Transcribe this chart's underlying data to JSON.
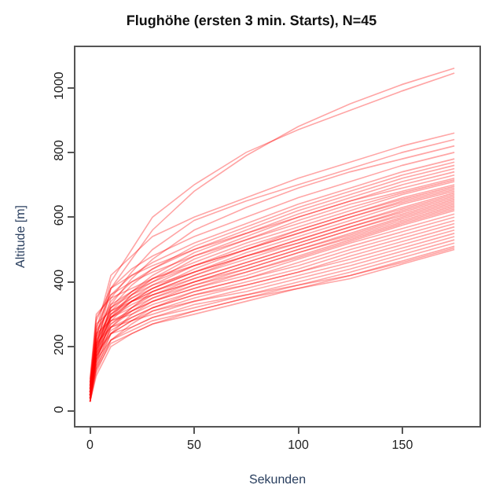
{
  "chart_data": {
    "type": "line",
    "title": "Flughöhe (ersten 3 min. Starts), N=45",
    "xlabel": "Sekunden",
    "ylabel": "Altitude [m]",
    "x": [
      0,
      3,
      10,
      20,
      30,
      50,
      75,
      100,
      125,
      150,
      175
    ],
    "color": "#ff0000",
    "marker": "none",
    "line_style": "solid",
    "xlim": [
      -7,
      187
    ],
    "ylim": [
      -45,
      1125
    ],
    "xticks": [
      0,
      50,
      100,
      150
    ],
    "yticks": [
      0,
      200,
      400,
      600,
      800,
      1000
    ],
    "series": [
      {
        "values": [
          40,
          200,
          380,
          470,
          560,
          680,
          790,
          880,
          950,
          1010,
          1060
        ]
      },
      {
        "values": [
          50,
          230,
          400,
          500,
          600,
          700,
          800,
          870,
          930,
          990,
          1045
        ]
      },
      {
        "values": [
          60,
          250,
          420,
          480,
          540,
          600,
          660,
          720,
          770,
          820,
          860
        ]
      },
      {
        "values": [
          40,
          210,
          350,
          430,
          500,
          590,
          650,
          700,
          750,
          800,
          840
        ]
      },
      {
        "values": [
          30,
          180,
          330,
          410,
          470,
          560,
          630,
          690,
          740,
          780,
          820
        ]
      },
      {
        "values": [
          50,
          230,
          380,
          440,
          480,
          540,
          600,
          660,
          710,
          760,
          800
        ]
      },
      {
        "values": [
          70,
          260,
          360,
          420,
          460,
          520,
          580,
          640,
          690,
          740,
          780
        ]
      },
      {
        "values": [
          40,
          190,
          320,
          390,
          440,
          510,
          570,
          630,
          680,
          730,
          770
        ]
      },
      {
        "values": [
          60,
          220,
          340,
          400,
          440,
          500,
          560,
          620,
          670,
          720,
          760
        ]
      },
      {
        "values": [
          80,
          280,
          380,
          420,
          450,
          500,
          550,
          610,
          660,
          710,
          750
        ]
      },
      {
        "values": [
          30,
          150,
          290,
          360,
          410,
          480,
          540,
          600,
          650,
          700,
          740
        ]
      },
      {
        "values": [
          50,
          200,
          310,
          370,
          420,
          490,
          550,
          600,
          650,
          690,
          730
        ]
      },
      {
        "values": [
          40,
          170,
          300,
          360,
          400,
          470,
          530,
          590,
          640,
          680,
          720
        ]
      },
      {
        "values": [
          90,
          290,
          360,
          400,
          430,
          480,
          530,
          580,
          630,
          675,
          715
        ]
      },
      {
        "values": [
          60,
          210,
          320,
          370,
          410,
          460,
          520,
          570,
          620,
          670,
          710
        ]
      },
      {
        "values": [
          50,
          190,
          300,
          350,
          390,
          450,
          510,
          560,
          610,
          660,
          700
        ]
      },
      {
        "values": [
          70,
          240,
          330,
          370,
          400,
          450,
          500,
          560,
          610,
          655,
          695
        ]
      },
      {
        "values": [
          40,
          160,
          280,
          340,
          380,
          440,
          500,
          550,
          600,
          650,
          690
        ]
      },
      {
        "values": [
          100,
          300,
          350,
          380,
          410,
          450,
          500,
          550,
          600,
          645,
          685
        ]
      },
      {
        "values": [
          50,
          180,
          290,
          340,
          380,
          430,
          490,
          540,
          590,
          640,
          680
        ]
      },
      {
        "values": [
          60,
          210,
          310,
          350,
          380,
          430,
          480,
          530,
          580,
          630,
          675
        ]
      },
      {
        "values": [
          30,
          140,
          260,
          320,
          370,
          420,
          480,
          530,
          580,
          625,
          670
        ]
      },
      {
        "values": [
          80,
          250,
          320,
          360,
          390,
          430,
          480,
          520,
          570,
          620,
          665
        ]
      },
      {
        "values": [
          50,
          190,
          290,
          340,
          370,
          420,
          470,
          520,
          570,
          615,
          660
        ]
      },
      {
        "values": [
          70,
          230,
          300,
          340,
          370,
          410,
          460,
          510,
          560,
          610,
          655
        ]
      },
      {
        "values": [
          40,
          170,
          270,
          320,
          360,
          410,
          460,
          510,
          560,
          605,
          650
        ]
      },
      {
        "values": [
          60,
          200,
          290,
          330,
          360,
          400,
          450,
          500,
          550,
          600,
          645
        ]
      },
      {
        "values": [
          90,
          270,
          310,
          340,
          360,
          400,
          450,
          500,
          545,
          595,
          640
        ]
      },
      {
        "values": [
          50,
          180,
          270,
          310,
          350,
          400,
          440,
          490,
          540,
          590,
          635
        ]
      },
      {
        "values": [
          30,
          130,
          240,
          300,
          340,
          390,
          440,
          490,
          535,
          585,
          630
        ]
      },
      {
        "values": [
          70,
          220,
          290,
          320,
          350,
          390,
          430,
          480,
          530,
          580,
          625
        ]
      },
      {
        "values": [
          40,
          160,
          260,
          310,
          340,
          380,
          430,
          475,
          525,
          575,
          620
        ]
      },
      {
        "values": [
          60,
          200,
          280,
          310,
          340,
          380,
          420,
          470,
          520,
          565,
          610
        ]
      },
      {
        "values": [
          50,
          170,
          250,
          290,
          320,
          370,
          410,
          460,
          510,
          555,
          600
        ]
      },
      {
        "values": [
          80,
          240,
          280,
          300,
          330,
          370,
          410,
          450,
          500,
          545,
          590
        ]
      },
      {
        "values": [
          40,
          150,
          240,
          280,
          320,
          360,
          400,
          440,
          490,
          535,
          580
        ]
      },
      {
        "values": [
          60,
          190,
          260,
          290,
          320,
          360,
          390,
          430,
          480,
          525,
          570
        ]
      },
      {
        "values": [
          30,
          120,
          220,
          270,
          310,
          350,
          390,
          430,
          470,
          515,
          560
        ]
      },
      {
        "values": [
          50,
          170,
          240,
          280,
          310,
          340,
          380,
          420,
          460,
          505,
          550
        ]
      },
      {
        "values": [
          70,
          210,
          260,
          280,
          300,
          340,
          370,
          410,
          450,
          495,
          540
        ]
      },
      {
        "values": [
          40,
          140,
          220,
          260,
          290,
          330,
          360,
          400,
          440,
          485,
          530
        ]
      },
      {
        "values": [
          60,
          180,
          240,
          260,
          290,
          320,
          360,
          390,
          430,
          475,
          520
        ]
      },
      {
        "values": [
          30,
          110,
          200,
          240,
          270,
          310,
          350,
          390,
          420,
          465,
          510
        ]
      },
      {
        "values": [
          50,
          160,
          220,
          250,
          280,
          310,
          350,
          380,
          420,
          460,
          505
        ]
      },
      {
        "values": [
          40,
          130,
          210,
          240,
          270,
          300,
          340,
          380,
          410,
          455,
          500
        ]
      }
    ]
  }
}
